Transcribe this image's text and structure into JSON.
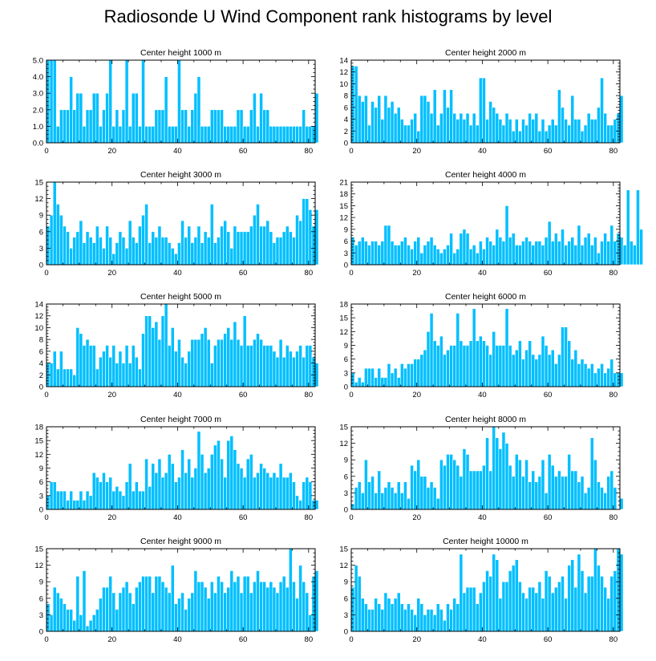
{
  "title": "Radiosonde U Wind Component rank histograms by level",
  "colors": {
    "bar": "#00bfff",
    "bar_edge": "#ffffff",
    "axis": "#000000"
  },
  "chart_data": [
    {
      "type": "bar",
      "title": "Center height 1000 m",
      "xlim": [
        0,
        82
      ],
      "ylim": [
        0,
        5
      ],
      "yticks": [
        0,
        1,
        2,
        3,
        4,
        5
      ],
      "ytick_labels": [
        "0.0",
        "1.0",
        "2.0",
        "3.0",
        "4.0",
        "5.0"
      ],
      "xticks": [
        0,
        20,
        40,
        60,
        80
      ],
      "values": [
        5,
        5,
        5,
        1,
        2,
        2,
        2,
        4,
        2,
        3,
        3,
        1,
        2,
        2,
        3,
        3,
        1,
        2,
        3,
        5,
        1,
        2,
        1,
        2,
        5,
        1,
        3,
        3,
        1,
        5,
        1,
        1,
        1,
        2,
        2,
        2,
        4,
        1,
        1,
        1,
        5,
        2,
        2,
        1,
        2,
        3,
        4,
        1,
        1,
        1,
        2,
        2,
        2,
        2,
        1,
        1,
        1,
        1,
        2,
        2,
        1,
        1,
        2,
        3,
        1,
        3,
        2,
        2,
        1,
        1,
        1,
        1,
        1,
        1,
        1,
        1,
        1,
        1,
        2,
        1,
        1,
        1,
        3
      ]
    },
    {
      "type": "bar",
      "title": "Center height 2000 m",
      "xlim": [
        0,
        82
      ],
      "ylim": [
        0,
        14
      ],
      "yticks": [
        0,
        2,
        4,
        6,
        8,
        10,
        12,
        14
      ],
      "ytick_labels": [
        "0",
        "2",
        "4",
        "6",
        "8",
        "10",
        "12",
        "14"
      ],
      "xticks": [
        0,
        20,
        40,
        60,
        80
      ],
      "values": [
        13,
        13,
        8,
        7,
        8,
        3,
        7,
        6,
        8,
        4,
        8,
        6,
        7,
        5,
        6,
        4,
        3,
        3,
        4,
        5,
        2,
        8,
        8,
        7,
        5,
        9,
        3,
        5,
        9,
        6,
        9,
        5,
        4,
        5,
        4,
        5,
        3,
        5,
        3,
        11,
        11,
        4,
        7,
        6,
        5,
        4,
        3,
        5,
        4,
        2,
        4,
        2,
        4,
        3,
        5,
        4,
        5,
        2,
        4,
        2,
        3,
        4,
        3,
        9,
        6,
        4,
        3,
        8,
        4,
        4,
        2,
        3,
        5,
        4,
        4,
        6,
        11,
        5,
        3,
        3,
        4,
        5,
        8
      ]
    },
    {
      "type": "bar",
      "title": "Center height 3000 m",
      "xlim": [
        0,
        82
      ],
      "ylim": [
        0,
        15
      ],
      "yticks": [
        0,
        3,
        6,
        9,
        12,
        15
      ],
      "ytick_labels": [
        "0",
        "3",
        "6",
        "9",
        "12",
        "15"
      ],
      "xticks": [
        0,
        20,
        40,
        60,
        80
      ],
      "values": [
        7,
        9,
        15,
        11,
        9,
        7,
        6,
        3,
        5,
        6,
        8,
        4,
        6,
        5,
        4,
        7,
        5,
        3,
        7,
        5,
        2,
        4,
        6,
        5,
        3,
        8,
        5,
        4,
        7,
        9,
        11,
        4,
        6,
        5,
        7,
        5,
        5,
        4,
        3,
        2,
        4,
        8,
        5,
        7,
        4,
        5,
        7,
        4,
        6,
        5,
        11,
        4,
        5,
        7,
        8,
        6,
        3,
        7,
        6,
        6,
        6,
        6,
        7,
        9,
        11,
        7,
        7,
        8,
        6,
        4,
        5,
        5,
        6,
        7,
        6,
        5,
        9,
        8,
        12,
        12,
        10,
        7,
        10
      ]
    },
    {
      "type": "bar",
      "title": "Center height 4000 m",
      "xlim": [
        0,
        82
      ],
      "ylim": [
        0,
        21
      ],
      "yticks": [
        0,
        3,
        6,
        9,
        12,
        15,
        18,
        21
      ],
      "ytick_labels": [
        "0",
        "3",
        "6",
        "9",
        "12",
        "15",
        "18",
        "21"
      ],
      "xticks": [
        0,
        20,
        40,
        60,
        80
      ],
      "values": [
        7,
        5,
        6,
        7,
        6,
        5,
        6,
        6,
        5,
        6,
        10,
        10,
        6,
        5,
        5,
        6,
        7,
        5,
        4,
        6,
        7,
        3,
        5,
        6,
        7,
        5,
        4,
        3,
        4,
        5,
        8,
        3,
        4,
        8,
        9,
        8,
        4,
        5,
        3,
        6,
        4,
        7,
        6,
        5,
        9,
        7,
        6,
        15,
        7,
        8,
        5,
        5,
        6,
        7,
        6,
        5,
        6,
        6,
        5,
        7,
        11,
        6,
        8,
        6,
        9,
        5,
        6,
        7,
        5,
        10,
        5,
        7,
        8,
        5,
        7,
        3,
        6,
        8,
        6,
        10,
        6,
        8,
        7,
        5,
        19,
        6,
        5,
        19,
        9
      ]
    },
    {
      "type": "bar",
      "title": "Center height 5000 m",
      "xlim": [
        0,
        82
      ],
      "ylim": [
        0,
        14
      ],
      "yticks": [
        0,
        2,
        4,
        6,
        8,
        10,
        12,
        14
      ],
      "ytick_labels": [
        "0",
        "2",
        "4",
        "6",
        "8",
        "10",
        "12",
        "14"
      ],
      "xticks": [
        0,
        20,
        40,
        60,
        80
      ],
      "values": [
        4,
        4,
        6,
        3,
        6,
        3,
        3,
        3,
        2,
        10,
        9,
        7,
        8,
        7,
        7,
        3,
        5,
        6,
        7,
        5,
        7,
        4,
        6,
        4,
        7,
        4,
        7,
        5,
        3,
        9,
        12,
        12,
        10,
        11,
        8,
        12,
        14,
        7,
        10,
        6,
        8,
        5,
        4,
        6,
        8,
        8,
        8,
        9,
        10,
        8,
        4,
        7,
        8,
        8,
        9,
        10,
        8,
        11,
        8,
        7,
        12,
        7,
        7,
        8,
        9,
        8,
        7,
        7,
        7,
        6,
        5,
        8,
        5,
        7,
        6,
        5,
        6,
        7,
        5,
        7,
        7,
        5,
        4
      ]
    },
    {
      "type": "bar",
      "title": "Center height 6000 m",
      "xlim": [
        0,
        82
      ],
      "ylim": [
        0,
        18
      ],
      "yticks": [
        0,
        3,
        6,
        9,
        12,
        15,
        18
      ],
      "ytick_labels": [
        "0",
        "3",
        "6",
        "9",
        "12",
        "15",
        "18"
      ],
      "xticks": [
        0,
        20,
        40,
        60,
        80
      ],
      "values": [
        3,
        1,
        2,
        1,
        4,
        4,
        4,
        2,
        4,
        2,
        2,
        5,
        3,
        4,
        2,
        5,
        4,
        5,
        5,
        6,
        6,
        7,
        8,
        12,
        16,
        10,
        9,
        11,
        7,
        8,
        9,
        9,
        16,
        10,
        9,
        9,
        10,
        17,
        10,
        11,
        10,
        9,
        7,
        12,
        9,
        9,
        9,
        17,
        9,
        7,
        8,
        10,
        6,
        8,
        10,
        7,
        6,
        7,
        11,
        9,
        7,
        8,
        5,
        7,
        13,
        13,
        10,
        6,
        8,
        5,
        6,
        5,
        4,
        5,
        3,
        4,
        5,
        3,
        4,
        6,
        3,
        3,
        3
      ]
    },
    {
      "type": "bar",
      "title": "Center height 7000 m",
      "xlim": [
        0,
        82
      ],
      "ylim": [
        0,
        18
      ],
      "yticks": [
        0,
        3,
        6,
        9,
        12,
        15,
        18
      ],
      "ytick_labels": [
        "0",
        "3",
        "6",
        "9",
        "12",
        "15",
        "18"
      ],
      "xticks": [
        0,
        20,
        40,
        60,
        80
      ],
      "values": [
        3,
        6,
        6,
        4,
        4,
        4,
        2,
        4,
        2,
        2,
        4,
        2,
        4,
        3,
        8,
        7,
        6,
        8,
        6,
        7,
        4,
        5,
        4,
        3,
        6,
        10,
        4,
        6,
        4,
        4,
        11,
        5,
        10,
        8,
        11,
        7,
        8,
        12,
        10,
        6,
        7,
        13,
        8,
        11,
        7,
        9,
        17,
        12,
        8,
        9,
        12,
        14,
        15,
        11,
        7,
        15,
        16,
        13,
        10,
        9,
        7,
        11,
        12,
        7,
        8,
        10,
        9,
        8,
        7,
        8,
        7,
        10,
        7,
        7,
        8,
        6,
        3,
        2,
        6,
        7,
        6,
        2,
        2
      ]
    },
    {
      "type": "bar",
      "title": "Center height 8000 m",
      "xlim": [
        0,
        82
      ],
      "ylim": [
        0,
        15
      ],
      "yticks": [
        0,
        3,
        6,
        9,
        12,
        15
      ],
      "ytick_labels": [
        "0",
        "3",
        "6",
        "9",
        "12",
        "15"
      ],
      "xticks": [
        0,
        20,
        40,
        60,
        80
      ],
      "values": [
        1,
        4,
        5,
        3,
        9,
        5,
        6,
        3,
        7,
        3,
        4,
        5,
        4,
        3,
        5,
        3,
        5,
        2,
        8,
        7,
        9,
        6,
        6,
        4,
        5,
        4,
        2,
        9,
        8,
        10,
        10,
        9,
        8,
        6,
        11,
        10,
        7,
        7,
        7,
        7,
        8,
        13,
        7,
        15,
        13,
        11,
        14,
        12,
        8,
        6,
        10,
        9,
        6,
        9,
        5,
        7,
        5,
        6,
        9,
        3,
        10,
        8,
        6,
        7,
        6,
        6,
        10,
        7,
        7,
        5,
        6,
        3,
        4,
        13,
        9,
        5,
        4,
        3,
        6,
        7,
        4,
        0,
        2
      ]
    },
    {
      "type": "bar",
      "title": "Center height 9000 m",
      "xlim": [
        0,
        82
      ],
      "ylim": [
        0,
        15
      ],
      "yticks": [
        0,
        3,
        6,
        9,
        12,
        15
      ],
      "ytick_labels": [
        "0",
        "3",
        "6",
        "9",
        "12",
        "15"
      ],
      "xticks": [
        0,
        20,
        40,
        60,
        80
      ],
      "values": [
        5,
        3,
        8,
        7,
        6,
        5,
        4,
        4,
        2,
        10,
        3,
        11,
        1,
        2,
        3,
        4,
        6,
        8,
        8,
        10,
        7,
        4,
        7,
        8,
        9,
        7,
        5,
        8,
        9,
        10,
        10,
        10,
        7,
        10,
        10,
        9,
        8,
        7,
        12,
        5,
        6,
        7,
        4,
        6,
        7,
        11,
        9,
        9,
        8,
        6,
        9,
        7,
        10,
        9,
        7,
        8,
        11,
        9,
        10,
        7,
        10,
        10,
        7,
        9,
        11,
        9,
        9,
        8,
        9,
        8,
        7,
        9,
        10,
        8,
        15,
        9,
        6,
        12,
        9,
        7,
        3,
        10,
        11
      ]
    },
    {
      "type": "bar",
      "title": "Center height 10000 m",
      "xlim": [
        0,
        82
      ],
      "ylim": [
        0,
        15
      ],
      "yticks": [
        0,
        3,
        6,
        9,
        12,
        15
      ],
      "ytick_labels": [
        "0",
        "3",
        "6",
        "9",
        "12",
        "15"
      ],
      "xticks": [
        0,
        20,
        40,
        60,
        80
      ],
      "values": [
        8,
        12,
        10,
        6,
        5,
        4,
        4,
        6,
        5,
        4,
        7,
        6,
        5,
        6,
        7,
        5,
        4,
        5,
        4,
        3,
        6,
        5,
        3,
        4,
        4,
        3,
        5,
        4,
        2,
        5,
        4,
        6,
        5,
        14,
        7,
        8,
        8,
        8,
        5,
        7,
        9,
        11,
        10,
        14,
        13,
        6,
        9,
        9,
        11,
        12,
        13,
        9,
        7,
        6,
        8,
        8,
        7,
        9,
        6,
        11,
        10,
        7,
        8,
        9,
        10,
        6,
        12,
        13,
        8,
        14,
        11,
        7,
        10,
        10,
        15,
        12,
        10,
        8,
        6,
        10,
        11,
        15,
        14
      ]
    }
  ]
}
